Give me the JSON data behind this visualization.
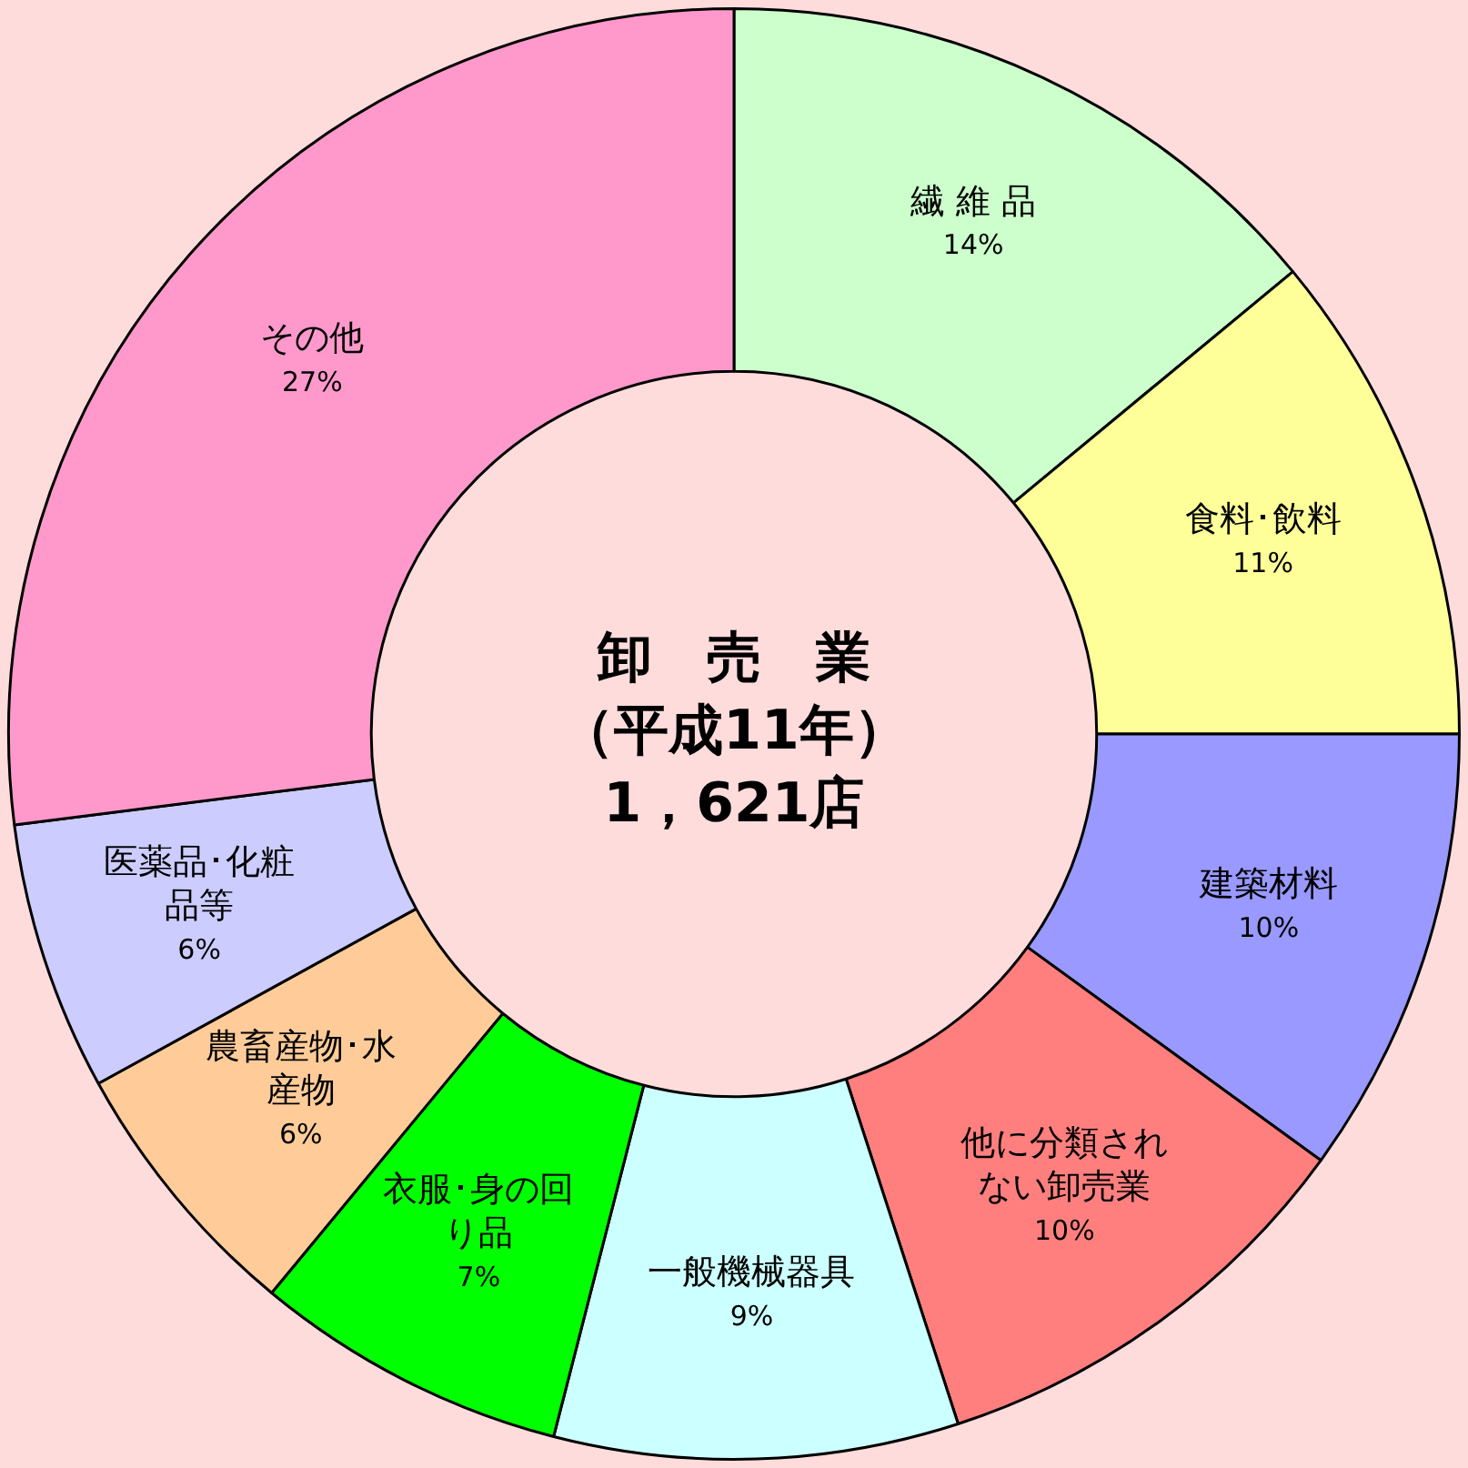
{
  "chart_data": {
    "type": "donut",
    "title": "卸　売　業",
    "subtitle": "（平成11年）",
    "annotations": [
      "1，621店"
    ],
    "categories": [
      "繊 維 品",
      "食料･飲料",
      "建築材料",
      "他に分類されない卸売業",
      "一般機械器具",
      "衣服･身の回り品",
      "農畜産物･水産物",
      "医薬品･化粧品等",
      "その他"
    ],
    "values": [
      14,
      11,
      10,
      10,
      9,
      7,
      6,
      6,
      27
    ],
    "value_labels": [
      "14%",
      "11%",
      "10%",
      "10%",
      "9%",
      "7%",
      "6%",
      "6%",
      "27%"
    ],
    "colors": [
      "#ccffcc",
      "#ffff99",
      "#9999ff",
      "#ff7f7f",
      "#ccffff",
      "#00ff00",
      "#ffcc99",
      "#ccccff",
      "#ff99cc"
    ],
    "legend": false
  }
}
